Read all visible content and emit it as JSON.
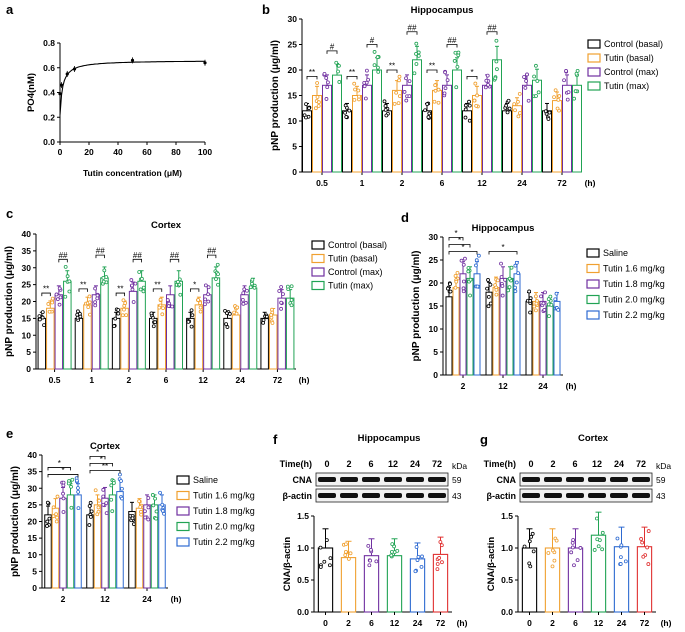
{
  "chart_data": [
    {
      "panel": "a",
      "type": "scatter",
      "title": "",
      "xlabel": "Tutin concentration (μM)",
      "ylabel": "PO4(nM)",
      "xlim": [
        0,
        100
      ],
      "ylim": [
        0,
        0.8
      ],
      "xticks": [
        "0",
        "20",
        "40",
        "60",
        "80",
        "100"
      ],
      "yticks": [
        "0.0",
        "0.2",
        "0.4",
        "0.6",
        "0.8"
      ],
      "x": [
        0,
        1,
        5,
        10,
        50,
        100
      ],
      "values": [
        0.39,
        0.46,
        0.55,
        0.59,
        0.66,
        0.64
      ],
      "fit": {
        "bmax": 0.66,
        "kd": 1.2
      }
    },
    {
      "panel": "b",
      "type": "bar",
      "title": "Hippocampus",
      "xlabel": "",
      "ylabel": "pNP production (μg/ml)",
      "unit": "(h)",
      "ylim": [
        0,
        30
      ],
      "yticks": [
        "0",
        "5",
        "10",
        "15",
        "20",
        "25",
        "30"
      ],
      "categories": [
        "0.5",
        "1",
        "2",
        "6",
        "12",
        "24",
        "72"
      ],
      "series": [
        {
          "name": "Control (basal)",
          "color": "#000000",
          "values": [
            12,
            12,
            12,
            12,
            12,
            12,
            12
          ]
        },
        {
          "name": "Tutin (basal)",
          "color": "#f0a030",
          "values": [
            15,
            15,
            16,
            16,
            15,
            13,
            14
          ]
        },
        {
          "name": "Control (max)",
          "color": "#7030a0",
          "values": [
            17,
            17,
            17,
            17,
            17,
            17,
            17
          ]
        },
        {
          "name": "Tutin (max)",
          "color": "#21a354",
          "values": [
            19,
            20,
            22,
            20,
            22,
            18,
            17
          ]
        }
      ],
      "annotations": [
        {
          "cat": 0,
          "pair": [
            0,
            1
          ],
          "label": "**"
        },
        {
          "cat": 0,
          "pair": [
            2,
            3
          ],
          "label": "#"
        },
        {
          "cat": 1,
          "pair": [
            0,
            1
          ],
          "label": "**"
        },
        {
          "cat": 1,
          "pair": [
            2,
            3
          ],
          "label": "#"
        },
        {
          "cat": 2,
          "pair": [
            0,
            1
          ],
          "label": "**"
        },
        {
          "cat": 2,
          "pair": [
            2,
            3
          ],
          "label": "##"
        },
        {
          "cat": 3,
          "pair": [
            0,
            1
          ],
          "label": "**"
        },
        {
          "cat": 3,
          "pair": [
            2,
            3
          ],
          "label": "##"
        },
        {
          "cat": 4,
          "pair": [
            0,
            1
          ],
          "label": "*"
        },
        {
          "cat": 4,
          "pair": [
            2,
            3
          ],
          "label": "##"
        }
      ]
    },
    {
      "panel": "c",
      "type": "bar",
      "title": "Cortex",
      "xlabel": "",
      "ylabel": "pNP production (μg/ml)",
      "unit": "(h)",
      "ylim": [
        0,
        40
      ],
      "yticks": [
        "0",
        "5",
        "10",
        "15",
        "20",
        "25",
        "30",
        "35",
        "40"
      ],
      "categories": [
        "0.5",
        "1",
        "2",
        "6",
        "12",
        "24",
        "72"
      ],
      "series": [
        {
          "name": "Control (basal)",
          "color": "#000000",
          "values": [
            15,
            15,
            15,
            15,
            15,
            15,
            15
          ]
        },
        {
          "name": "Tutin (basal)",
          "color": "#f0a030",
          "values": [
            18,
            19,
            18,
            19,
            19,
            16,
            16
          ]
        },
        {
          "name": "Control (max)",
          "color": "#7030a0",
          "values": [
            22,
            22,
            23,
            22,
            22,
            22,
            21
          ]
        },
        {
          "name": "Tutin (max)",
          "color": "#21a354",
          "values": [
            26,
            27,
            26,
            26,
            27,
            24,
            21
          ]
        }
      ],
      "annotations": [
        {
          "cat": 0,
          "pair": [
            0,
            1
          ],
          "label": "**"
        },
        {
          "cat": 0,
          "pair": [
            2,
            3
          ],
          "label": "##"
        },
        {
          "cat": 1,
          "pair": [
            0,
            1
          ],
          "label": "**"
        },
        {
          "cat": 1,
          "pair": [
            2,
            3
          ],
          "label": "##"
        },
        {
          "cat": 2,
          "pair": [
            0,
            1
          ],
          "label": "**"
        },
        {
          "cat": 2,
          "pair": [
            2,
            3
          ],
          "label": "##"
        },
        {
          "cat": 3,
          "pair": [
            0,
            1
          ],
          "label": "**"
        },
        {
          "cat": 3,
          "pair": [
            2,
            3
          ],
          "label": "##"
        },
        {
          "cat": 4,
          "pair": [
            0,
            1
          ],
          "label": "*"
        },
        {
          "cat": 4,
          "pair": [
            2,
            3
          ],
          "label": "##"
        }
      ]
    },
    {
      "panel": "d",
      "type": "bar",
      "title": "Hippocampus",
      "xlabel": "",
      "ylabel": "pNP production (μg/ml)",
      "unit": "(h)",
      "ylim": [
        0,
        30
      ],
      "yticks": [
        "0",
        "5",
        "10",
        "15",
        "20",
        "25",
        "30"
      ],
      "categories": [
        "2",
        "12",
        "24"
      ],
      "series": [
        {
          "name": "Saline",
          "color": "#000000",
          "values": [
            17,
            18,
            16
          ]
        },
        {
          "name": "Tutin 1.6 mg/kg",
          "color": "#f0a030",
          "values": [
            19,
            19,
            16
          ]
        },
        {
          "name": "Tutin 1.8 mg/kg",
          "color": "#7030a0",
          "values": [
            22,
            21,
            16
          ]
        },
        {
          "name": "Tutin 2.0 mg/kg",
          "color": "#21a354",
          "values": [
            21,
            21,
            15
          ]
        },
        {
          "name": "Tutin 2.2 mg/kg",
          "color": "#2e6ad1",
          "values": [
            22,
            22,
            16
          ]
        }
      ],
      "annotations": [
        {
          "cat": 0,
          "pair": [
            0,
            4
          ],
          "label": "*"
        },
        {
          "cat": 0,
          "pair": [
            0,
            3
          ],
          "label": "*"
        },
        {
          "cat": 0,
          "pair": [
            0,
            2
          ],
          "label": "*"
        },
        {
          "cat": 1,
          "pair": [
            0,
            4
          ],
          "label": "*"
        }
      ]
    },
    {
      "panel": "e",
      "type": "bar",
      "title": "Cortex",
      "xlabel": "",
      "ylabel": "pNP production (μg/ml)",
      "unit": "(h)",
      "ylim": [
        0,
        40
      ],
      "yticks": [
        "0",
        "5",
        "10",
        "15",
        "20",
        "25",
        "30",
        "35",
        "40"
      ],
      "categories": [
        "2",
        "12",
        "24"
      ],
      "series": [
        {
          "name": "Saline",
          "color": "#000000",
          "values": [
            22,
            22,
            23
          ]
        },
        {
          "name": "Tutin 1.6 mg/kg",
          "color": "#f0a030",
          "values": [
            24,
            25,
            24
          ]
        },
        {
          "name": "Tutin 1.8 mg/kg",
          "color": "#7030a0",
          "values": [
            27,
            27,
            25
          ]
        },
        {
          "name": "Tutin 2.0 mg/kg",
          "color": "#21a354",
          "values": [
            28,
            28,
            25
          ]
        },
        {
          "name": "Tutin 2.2 mg/kg",
          "color": "#2e6ad1",
          "values": [
            28,
            29,
            25
          ]
        }
      ],
      "annotations": [
        {
          "cat": 0,
          "pair": [
            0,
            4
          ],
          "label": "*"
        },
        {
          "cat": 0,
          "pair": [
            0,
            3
          ],
          "label": "*"
        },
        {
          "cat": 1,
          "pair": [
            0,
            4
          ],
          "label": "**"
        },
        {
          "cat": 1,
          "pair": [
            0,
            3
          ],
          "label": "*"
        },
        {
          "cat": 1,
          "pair": [
            0,
            2
          ],
          "label": "*"
        }
      ]
    },
    {
      "panel": "f",
      "type": "bar",
      "title": "Hippocampus",
      "xlabel": "",
      "ylabel": "CNA/β-actin",
      "unit": "(h)",
      "ylim": [
        0,
        1.5
      ],
      "yticks": [
        "0.0",
        "0.5",
        "1.0",
        "1.5"
      ],
      "categories": [
        "0",
        "2",
        "6",
        "12",
        "24",
        "72"
      ],
      "values": [
        1.0,
        0.85,
        0.88,
        0.88,
        0.83,
        0.9
      ],
      "colors": [
        "#000000",
        "#f0a030",
        "#7030a0",
        "#21a354",
        "#2e6ad1",
        "#e03030"
      ],
      "blot": {
        "time_label": "Time(h)",
        "times": [
          "0",
          "2",
          "6",
          "12",
          "24",
          "72"
        ],
        "bands": [
          "CNA",
          "β-actin"
        ],
        "kda_label": "kDa",
        "kda": [
          "59",
          "43"
        ]
      }
    },
    {
      "panel": "g",
      "type": "bar",
      "title": "Cortex",
      "xlabel": "",
      "ylabel": "CNA/β-actin",
      "unit": "(h)",
      "ylim": [
        0,
        1.5
      ],
      "yticks": [
        "0.0",
        "0.5",
        "1.0",
        "1.5"
      ],
      "categories": [
        "0",
        "2",
        "6",
        "12",
        "24",
        "72"
      ],
      "values": [
        1.0,
        1.0,
        1.0,
        1.2,
        1.02,
        1.02
      ],
      "colors": [
        "#000000",
        "#f0a030",
        "#7030a0",
        "#21a354",
        "#2e6ad1",
        "#e03030"
      ],
      "blot": {
        "time_label": "Time(h)",
        "times": [
          "0",
          "2",
          "6",
          "12",
          "24",
          "72"
        ],
        "bands": [
          "CNA",
          "β-actin"
        ],
        "kda_label": "kDa",
        "kda": [
          "59",
          "43"
        ]
      }
    }
  ],
  "panel_labels": [
    "a",
    "b",
    "c",
    "d",
    "e",
    "f",
    "g"
  ]
}
